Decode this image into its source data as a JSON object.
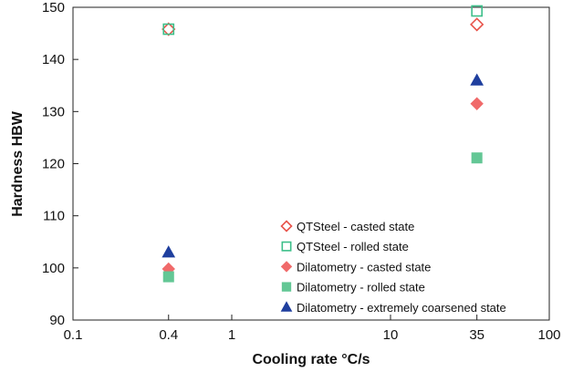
{
  "chart_data": {
    "type": "scatter",
    "title": "",
    "xlabel": "Cooling rate °C/s",
    "ylabel": "Hardness HBW",
    "xscale": "log",
    "xlim": [
      0.1,
      100
    ],
    "ylim": [
      90,
      150
    ],
    "xticks": [
      {
        "value": 0.1,
        "label": "0.1"
      },
      {
        "value": 0.4,
        "label": "0.4"
      },
      {
        "value": 1,
        "label": "1"
      },
      {
        "value": 10,
        "label": "10"
      },
      {
        "value": 35,
        "label": "35"
      },
      {
        "value": 100,
        "label": "100"
      }
    ],
    "yticks": [
      90,
      100,
      110,
      120,
      130,
      140,
      150
    ],
    "grid": false,
    "legend_position": "bottom-right",
    "series": [
      {
        "name": "QTSteel - casted state",
        "marker": "diamond-open",
        "color": "#e8534a",
        "points": [
          {
            "x": 0.4,
            "y": 145.8
          },
          {
            "x": 35,
            "y": 146.7
          }
        ]
      },
      {
        "name": "QTSteel - rolled state",
        "marker": "square-open",
        "color": "#3dbf8a",
        "points": [
          {
            "x": 0.4,
            "y": 145.8
          },
          {
            "x": 35,
            "y": 149.3
          }
        ]
      },
      {
        "name": "Dilatometry - casted state",
        "marker": "diamond-filled",
        "color": "#f06a6a",
        "points": [
          {
            "x": 0.4,
            "y": 99.8
          },
          {
            "x": 35,
            "y": 131.5
          }
        ]
      },
      {
        "name": "Dilatometry - rolled state",
        "marker": "square-filled",
        "color": "#63c795",
        "points": [
          {
            "x": 0.4,
            "y": 98.3
          },
          {
            "x": 35,
            "y": 121.1
          }
        ]
      },
      {
        "name": "Dilatometry - extremely coarsened state",
        "marker": "triangle-filled",
        "color": "#1f3f9e",
        "points": [
          {
            "x": 0.4,
            "y": 103
          },
          {
            "x": 35,
            "y": 136
          }
        ]
      }
    ]
  }
}
